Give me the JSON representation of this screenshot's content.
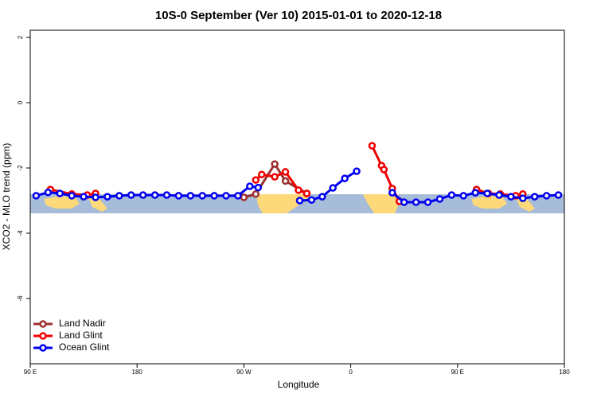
{
  "chart_data": {
    "type": "line",
    "title": "10S-0 September (Ver 10)   2015-01-01 to 2020-12-18",
    "xlabel": "Longitude",
    "ylabel": "XCO2 - MLO trend (ppm)",
    "xlim": [
      90,
      540
    ],
    "xticks": [
      {
        "value": 90,
        "label": "90 E"
      },
      180,
      {
        "value": 270,
        "label": "90 W"
      },
      {
        "value": 360,
        "label": "0"
      },
      {
        "value": 450,
        "label": "90 E"
      },
      {
        "value": 540,
        "label": "180"
      }
    ],
    "ylim": [
      -8,
      2.22
    ],
    "yticks": [
      2,
      0,
      -2,
      -4,
      -6
    ],
    "legend": "bottomleft",
    "series": [
      {
        "name": "Land Nadir",
        "color": "#9c2f2f",
        "x": [
          270,
          280,
          296,
          305,
          323
        ],
        "values": [
          -2.9,
          -2.8,
          -1.88,
          -2.4,
          -2.78
        ]
      },
      {
        "name": "Land Glint",
        "color": "#ee0000",
        "x": [
          107,
          125,
          138,
          145,
          null,
          280,
          285,
          296,
          305,
          316,
          323,
          null,
          378,
          386,
          388,
          395,
          401,
          null,
          466,
          476,
          486,
          499,
          505
        ],
        "values": [
          -2.66,
          -2.8,
          -2.83,
          -2.78,
          null,
          -2.37,
          -2.2,
          -2.27,
          -2.12,
          -2.68,
          -2.78,
          null,
          -1.32,
          -1.93,
          -2.05,
          -2.63,
          -3.02,
          null,
          -2.66,
          -2.78,
          -2.8,
          -2.85,
          -2.8
        ]
      },
      {
        "name": "Ocean Glint",
        "color": "#0000ee",
        "x": [
          95,
          105,
          115,
          125,
          135,
          145,
          155,
          165,
          175,
          185,
          195,
          205,
          215,
          225,
          235,
          245,
          255,
          265,
          275,
          282,
          null,
          317,
          327,
          336,
          345,
          355,
          365,
          null,
          395,
          405,
          415,
          425,
          435,
          445,
          455,
          465,
          475,
          485,
          495,
          505,
          515,
          525,
          535
        ],
        "values": [
          -2.85,
          -2.75,
          -2.78,
          -2.85,
          -2.88,
          -2.9,
          -2.88,
          -2.85,
          -2.83,
          -2.83,
          -2.83,
          -2.83,
          -2.85,
          -2.85,
          -2.85,
          -2.85,
          -2.85,
          -2.85,
          -2.56,
          -2.6,
          null,
          -3.0,
          -2.98,
          -2.88,
          -2.61,
          -2.32,
          -2.1,
          null,
          -2.76,
          -3.05,
          -3.05,
          -3.05,
          -2.95,
          -2.83,
          -2.85,
          -2.76,
          -2.78,
          -2.83,
          -2.88,
          -2.93,
          -2.88,
          -2.85,
          -2.83
        ]
      }
    ]
  }
}
